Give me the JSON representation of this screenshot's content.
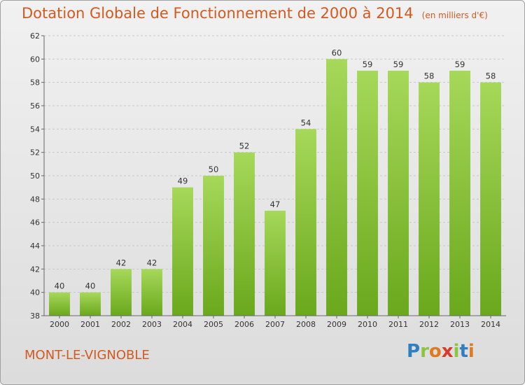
{
  "title": "Dotation Globale de Fonctionnement de 2000 à 2014",
  "unit": "(en milliers d'€)",
  "commune": "MONT-LE-VIGNOBLE",
  "logo": {
    "letters": [
      "P",
      "r",
      "o",
      "x",
      "i",
      "t",
      "i"
    ],
    "colors": [
      "#2f7fc1",
      "#8cc63f",
      "#e07a1f",
      "#d93a2b",
      "#8cc63f",
      "#2f7fc1",
      "#e07a1f"
    ]
  },
  "colors": {
    "bar_light": "#a6d85a",
    "bar_dark": "#6aa81c",
    "accent": "#d25a1f"
  },
  "chart_data": {
    "type": "bar",
    "title": "Dotation Globale de Fonctionnement de 2000 à 2014",
    "ylabel": "(en milliers d'€)",
    "categories": [
      "2000",
      "2001",
      "2002",
      "2003",
      "2004",
      "2005",
      "2006",
      "2007",
      "2008",
      "2009",
      "2010",
      "2011",
      "2012",
      "2013",
      "2014"
    ],
    "values": [
      40,
      40,
      42,
      42,
      49,
      50,
      52,
      47,
      54,
      60,
      59,
      59,
      58,
      59,
      58
    ],
    "ylim": [
      38,
      62
    ],
    "yticks": [
      38,
      40,
      42,
      44,
      46,
      48,
      50,
      52,
      54,
      56,
      58,
      60,
      62
    ],
    "grid": true
  }
}
